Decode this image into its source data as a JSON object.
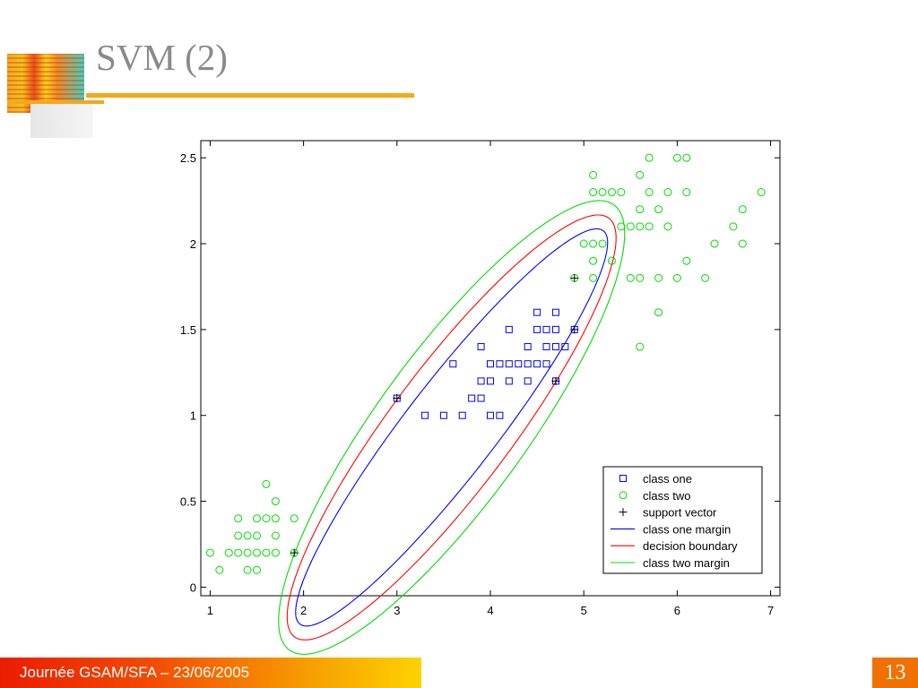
{
  "slide": {
    "title": "SVM (2)",
    "footer": "Journée GSAM/SFA – 23/06/2005",
    "page_number": "13"
  },
  "chart_data": {
    "type": "scatter",
    "xlim": [
      0.9,
      7.1
    ],
    "ylim": [
      -0.05,
      2.6
    ],
    "xticks": [
      "1",
      "2",
      "3",
      "4",
      "5",
      "6",
      "7"
    ],
    "yticks": [
      "0",
      "0.5",
      "1",
      "1.5",
      "2",
      "2.5"
    ],
    "legend_position": "bottom-right",
    "series": [
      {
        "name": "class one",
        "marker": "square",
        "color": "#0000ff",
        "points": [
          [
            3.0,
            1.1
          ],
          [
            3.3,
            1.0
          ],
          [
            3.5,
            1.0
          ],
          [
            3.6,
            1.3
          ],
          [
            3.7,
            1.0
          ],
          [
            3.8,
            1.1
          ],
          [
            3.9,
            1.1
          ],
          [
            3.9,
            1.2
          ],
          [
            3.9,
            1.4
          ],
          [
            4.0,
            1.0
          ],
          [
            4.0,
            1.2
          ],
          [
            4.0,
            1.3
          ],
          [
            4.1,
            1.0
          ],
          [
            4.1,
            1.3
          ],
          [
            4.2,
            1.2
          ],
          [
            4.2,
            1.3
          ],
          [
            4.2,
            1.5
          ],
          [
            4.3,
            1.3
          ],
          [
            4.4,
            1.2
          ],
          [
            4.4,
            1.3
          ],
          [
            4.4,
            1.4
          ],
          [
            4.5,
            1.3
          ],
          [
            4.5,
            1.5
          ],
          [
            4.5,
            1.6
          ],
          [
            4.6,
            1.3
          ],
          [
            4.6,
            1.4
          ],
          [
            4.6,
            1.5
          ],
          [
            4.7,
            1.2
          ],
          [
            4.7,
            1.4
          ],
          [
            4.7,
            1.5
          ],
          [
            4.7,
            1.6
          ],
          [
            4.8,
            1.4
          ],
          [
            4.9,
            1.5
          ]
        ]
      },
      {
        "name": "class two",
        "marker": "circle",
        "color": "#00dd00",
        "points": [
          [
            1.0,
            0.2
          ],
          [
            1.1,
            0.1
          ],
          [
            1.2,
            0.2
          ],
          [
            1.3,
            0.2
          ],
          [
            1.3,
            0.3
          ],
          [
            1.3,
            0.4
          ],
          [
            1.4,
            0.1
          ],
          [
            1.4,
            0.2
          ],
          [
            1.4,
            0.3
          ],
          [
            1.5,
            0.1
          ],
          [
            1.5,
            0.2
          ],
          [
            1.5,
            0.3
          ],
          [
            1.5,
            0.4
          ],
          [
            1.6,
            0.2
          ],
          [
            1.6,
            0.4
          ],
          [
            1.6,
            0.6
          ],
          [
            1.7,
            0.2
          ],
          [
            1.7,
            0.3
          ],
          [
            1.7,
            0.4
          ],
          [
            1.7,
            0.5
          ],
          [
            1.9,
            0.2
          ],
          [
            1.9,
            0.4
          ],
          [
            4.9,
            1.8
          ],
          [
            5.0,
            2.0
          ],
          [
            5.1,
            1.8
          ],
          [
            5.1,
            1.9
          ],
          [
            5.1,
            2.0
          ],
          [
            5.1,
            2.3
          ],
          [
            5.1,
            2.4
          ],
          [
            5.2,
            2.0
          ],
          [
            5.2,
            2.3
          ],
          [
            5.3,
            1.9
          ],
          [
            5.3,
            2.3
          ],
          [
            5.4,
            2.1
          ],
          [
            5.4,
            2.3
          ],
          [
            5.5,
            1.8
          ],
          [
            5.5,
            2.1
          ],
          [
            5.6,
            1.4
          ],
          [
            5.6,
            1.8
          ],
          [
            5.6,
            2.1
          ],
          [
            5.6,
            2.2
          ],
          [
            5.6,
            2.4
          ],
          [
            5.7,
            2.1
          ],
          [
            5.7,
            2.3
          ],
          [
            5.7,
            2.5
          ],
          [
            5.8,
            1.6
          ],
          [
            5.8,
            1.8
          ],
          [
            5.8,
            2.2
          ],
          [
            5.9,
            2.1
          ],
          [
            5.9,
            2.3
          ],
          [
            6.0,
            1.8
          ],
          [
            6.0,
            2.5
          ],
          [
            6.1,
            1.9
          ],
          [
            6.1,
            2.3
          ],
          [
            6.1,
            2.5
          ],
          [
            6.3,
            1.8
          ],
          [
            6.4,
            2.0
          ],
          [
            6.6,
            2.1
          ],
          [
            6.7,
            2.0
          ],
          [
            6.7,
            2.2
          ],
          [
            6.9,
            2.3
          ]
        ]
      },
      {
        "name": "support vector",
        "marker": "plus",
        "color": "#000000",
        "points": [
          [
            1.9,
            0.2
          ],
          [
            3.0,
            1.1
          ],
          [
            4.7,
            1.2
          ],
          [
            4.9,
            1.5
          ],
          [
            4.9,
            1.8
          ]
        ]
      },
      {
        "name": "class one margin",
        "marker": "line",
        "color": "#0000ff",
        "ellipse": {
          "center": [
            3.585,
            0.93
          ],
          "a": 2.0,
          "b": 0.355,
          "angle_deg": 34
        }
      },
      {
        "name": "decision boundary",
        "marker": "line",
        "color": "#ff0000",
        "ellipse": {
          "center": [
            3.585,
            0.93
          ],
          "a": 2.1,
          "b": 0.47,
          "angle_deg": 34
        }
      },
      {
        "name": "class two margin",
        "marker": "line",
        "color": "#00dd00",
        "ellipse": {
          "center": [
            3.585,
            0.93
          ],
          "a": 2.2,
          "b": 0.58,
          "angle_deg": 34
        }
      }
    ]
  }
}
